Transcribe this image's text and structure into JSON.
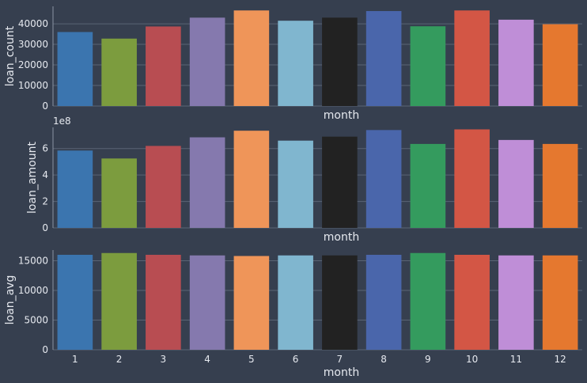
{
  "chart_data": [
    {
      "type": "bar",
      "categories": [
        "1",
        "2",
        "3",
        "4",
        "5",
        "6",
        "7",
        "8",
        "9",
        "10",
        "11",
        "12"
      ],
      "values": [
        36000,
        32800,
        38700,
        43000,
        46500,
        41500,
        43000,
        46200,
        38800,
        46500,
        42000,
        39800
      ],
      "title": "",
      "xlabel": "month",
      "ylabel": "loan_count",
      "ylim": [
        0,
        48500
      ],
      "yticks": [
        0,
        10000,
        20000,
        30000,
        40000
      ],
      "ytick_labels": [
        "0",
        "10000",
        "20000",
        "30000",
        "40000"
      ],
      "show_xticks": false,
      "offset_text": "",
      "grid": true
    },
    {
      "type": "bar",
      "categories": [
        "1",
        "2",
        "3",
        "4",
        "5",
        "6",
        "7",
        "8",
        "9",
        "10",
        "11",
        "12"
      ],
      "values": [
        5.85,
        5.25,
        6.2,
        6.85,
        7.35,
        6.6,
        6.9,
        7.4,
        6.35,
        7.45,
        6.65,
        6.35
      ],
      "title": "",
      "xlabel": "month",
      "ylabel": "loan_amount",
      "ylim": [
        0,
        7.6
      ],
      "yticks": [
        0,
        2,
        4,
        6
      ],
      "ytick_labels": [
        "0",
        "2",
        "4",
        "6"
      ],
      "show_xticks": false,
      "offset_text": "1e8",
      "grid": true
    },
    {
      "type": "bar",
      "categories": [
        "1",
        "2",
        "3",
        "4",
        "5",
        "6",
        "7",
        "8",
        "9",
        "10",
        "11",
        "12"
      ],
      "values": [
        16000,
        16300,
        16000,
        15900,
        15800,
        15900,
        15900,
        16000,
        16300,
        16000,
        15900,
        15900
      ],
      "title": "",
      "xlabel": "month",
      "ylabel": "loan_avg",
      "ylim": [
        0,
        16800
      ],
      "yticks": [
        0,
        5000,
        10000,
        15000
      ],
      "ytick_labels": [
        "0",
        "5000",
        "10000",
        "15000"
      ],
      "show_xticks": true,
      "offset_text": "",
      "grid": true
    }
  ],
  "palette": [
    "#3b75af",
    "#7c9c3e",
    "#b84d52",
    "#8579ae",
    "#ef9559",
    "#80b6cf",
    "#222222",
    "#4a66ab",
    "#349b5e",
    "#d35645",
    "#bf8ed7",
    "#e5782f"
  ],
  "colors": {
    "background": "#363f4f",
    "grid": "#5a6475",
    "text": "#e6e9ef",
    "axis": "#8a93a3"
  }
}
